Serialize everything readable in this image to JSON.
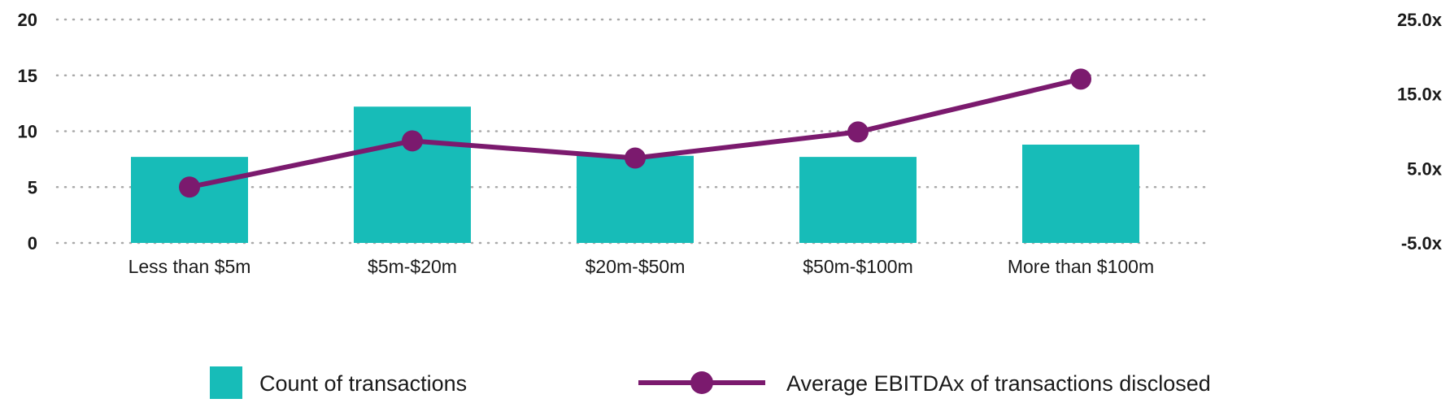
{
  "chart_data": {
    "type": "bar+line",
    "categories": [
      "Less than $5m",
      "$5m-$20m",
      "$20m-$50m",
      "$50m-$100m",
      "More than $100m"
    ],
    "series": [
      {
        "name": "Count of transactions",
        "type": "bar",
        "axis": "left",
        "values": [
          7.7,
          12.2,
          7.8,
          7.7,
          8.8
        ]
      },
      {
        "name": "Average EBITDAx of transactions disclosed",
        "type": "line",
        "axis": "right",
        "values": [
          2.5,
          8.7,
          6.4,
          9.9,
          17.0
        ]
      }
    ],
    "y_left": {
      "ticks": [
        0,
        5,
        10,
        15,
        20
      ],
      "tick_labels": [
        "0",
        "5",
        "10",
        "15",
        "20"
      ],
      "ylim": [
        0,
        20
      ]
    },
    "y_right": {
      "ticks": [
        -5,
        5,
        15,
        25
      ],
      "tick_labels": [
        "-5.0x",
        "5.0x",
        "15.0x",
        "25.0x"
      ],
      "ylim": [
        -5,
        25
      ]
    },
    "grid": "dotted horizontal",
    "legend_position": "bottom",
    "colors": {
      "bar": "#17BCB8",
      "line": "#7B1A6E",
      "grid": "#a9a9a9",
      "text": "#1a1a1a"
    }
  }
}
